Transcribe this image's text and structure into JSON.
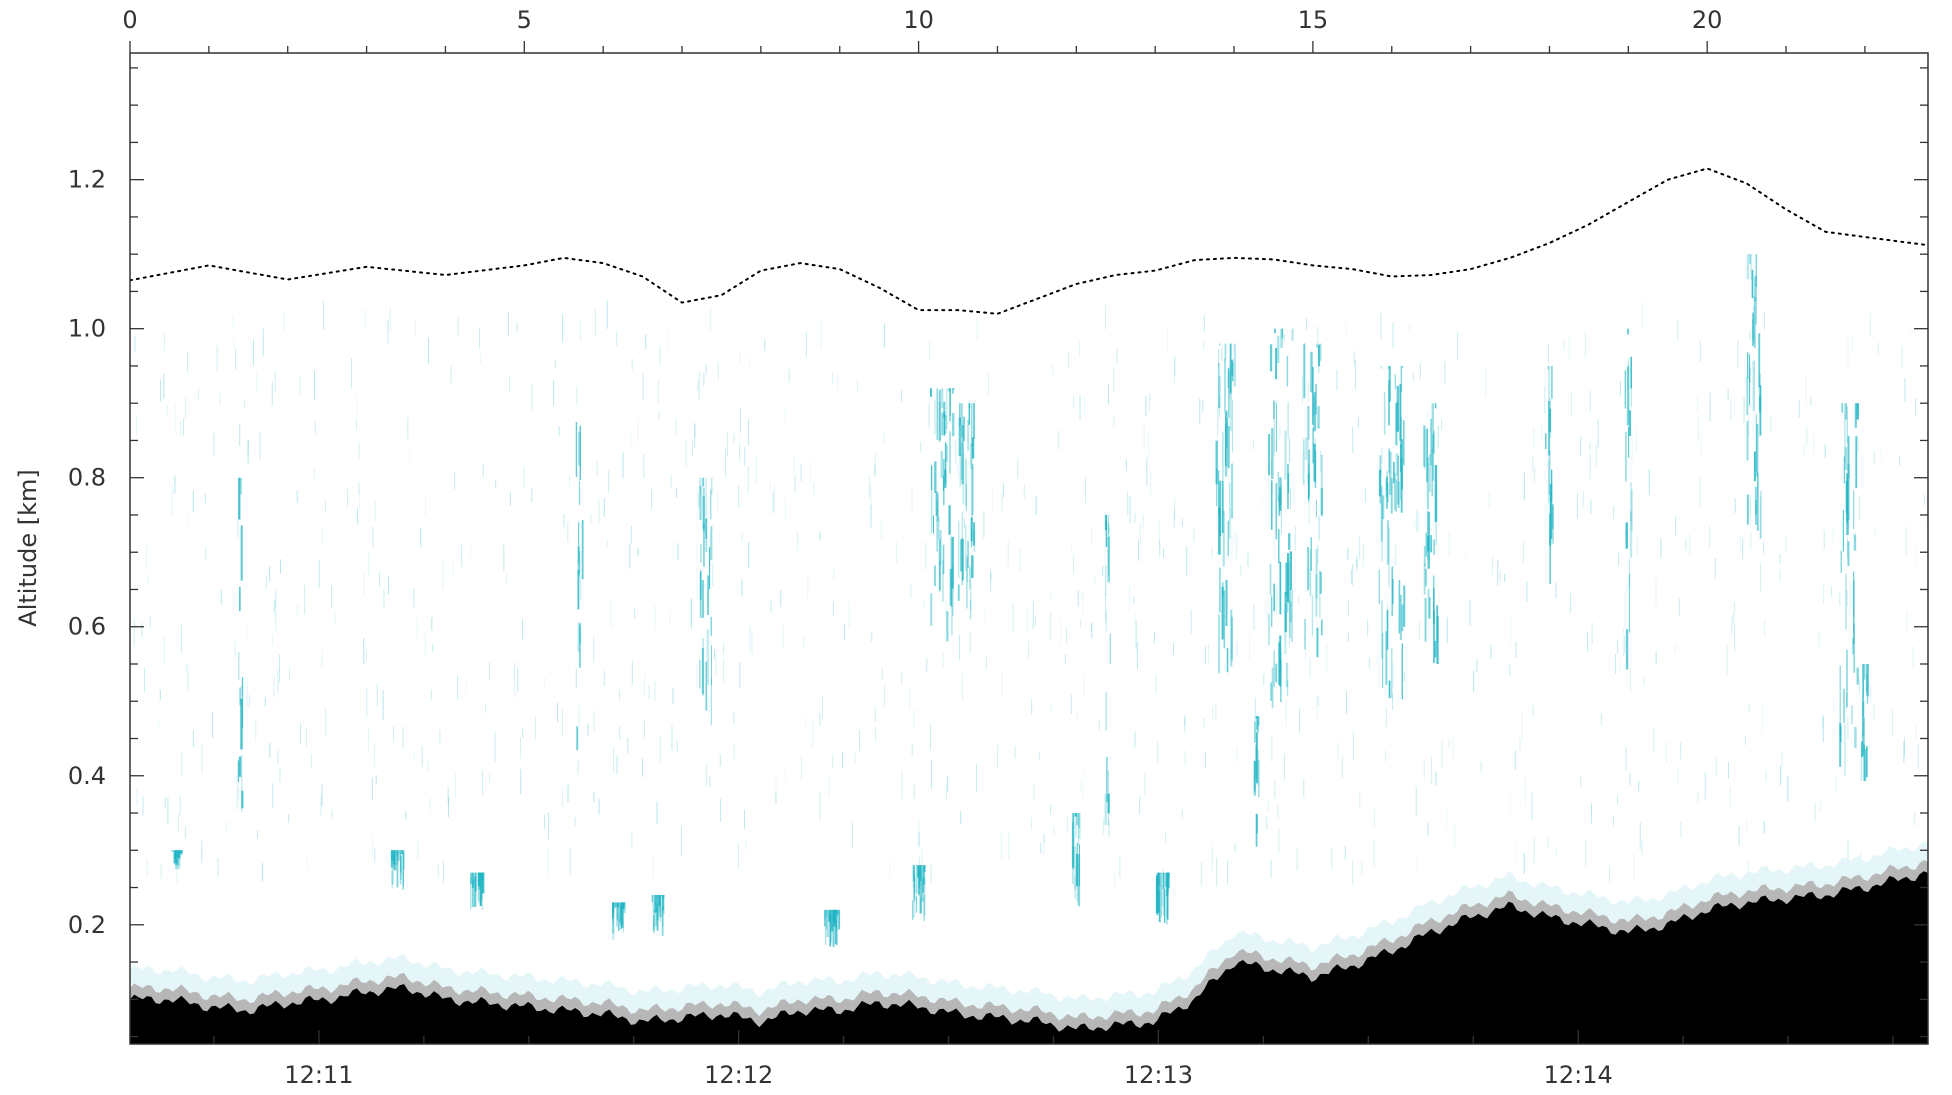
{
  "chart_data": {
    "type": "area",
    "title": "",
    "xlabel_top": "",
    "ylabel": "Altitude [km]",
    "ylim": [
      0.04,
      1.37
    ],
    "top_axis": {
      "range": [
        0,
        22.8
      ],
      "ticks": [
        0,
        5,
        10,
        15,
        20
      ],
      "tick_labels": [
        "0",
        "5",
        "10",
        "15",
        "20"
      ]
    },
    "bottom_axis": {
      "range": [
        "12:10:33",
        "12:14:50"
      ],
      "ticks": [
        "12:11",
        "12:12",
        "12:13",
        "12:14"
      ]
    },
    "y_ticks": [
      0.2,
      0.4,
      0.6,
      0.8,
      1.0,
      1.2
    ],
    "y_tick_labels": [
      "0.2",
      "0.4",
      "0.6",
      "0.8",
      "1.0",
      "1.2"
    ],
    "series": [
      {
        "kind": "line-dotted",
        "color": "#000000",
        "x": [
          0,
          1,
          2,
          3,
          4,
          5,
          5.5,
          6,
          6.5,
          7,
          7.5,
          8,
          8.5,
          9,
          9.5,
          10,
          10.5,
          11,
          11.5,
          12,
          12.5,
          13,
          13.5,
          14,
          14.5,
          15,
          15.5,
          16,
          16.5,
          17,
          17.5,
          18,
          18.5,
          19,
          19.5,
          20,
          20.5,
          21,
          21.5,
          22,
          22.8
        ],
        "values": [
          1.065,
          1.085,
          1.066,
          1.083,
          1.072,
          1.085,
          1.095,
          1.088,
          1.07,
          1.035,
          1.045,
          1.078,
          1.088,
          1.08,
          1.055,
          1.025,
          1.025,
          1.02,
          1.04,
          1.06,
          1.072,
          1.078,
          1.092,
          1.095,
          1.093,
          1.085,
          1.08,
          1.07,
          1.072,
          1.08,
          1.095,
          1.115,
          1.14,
          1.17,
          1.2,
          1.215,
          1.195,
          1.16,
          1.13,
          1.123,
          1.112
        ]
      },
      {
        "kind": "filled-area",
        "color": "#000000",
        "x": [
          0,
          0.5,
          1,
          1.5,
          2,
          2.5,
          3,
          3.5,
          4,
          4.5,
          5,
          5.5,
          6,
          6.5,
          7,
          7.5,
          8,
          8.5,
          9,
          9.5,
          10,
          10.5,
          11,
          11.5,
          12,
          12.5,
          13,
          13.5,
          14,
          14.5,
          15,
          15.5,
          16,
          16.5,
          17,
          17.5,
          18,
          18.5,
          19,
          19.5,
          20,
          20.5,
          21,
          21.5,
          22,
          22.8
        ],
        "values": [
          0.1,
          0.1,
          0.09,
          0.085,
          0.095,
          0.1,
          0.11,
          0.115,
          0.1,
          0.095,
          0.09,
          0.085,
          0.08,
          0.07,
          0.075,
          0.08,
          0.07,
          0.085,
          0.085,
          0.095,
          0.09,
          0.08,
          0.075,
          0.07,
          0.06,
          0.065,
          0.07,
          0.1,
          0.15,
          0.14,
          0.13,
          0.145,
          0.165,
          0.19,
          0.21,
          0.225,
          0.21,
          0.2,
          0.19,
          0.2,
          0.22,
          0.23,
          0.235,
          0.24,
          0.25,
          0.27
        ]
      }
    ],
    "heatmap_color": "#1fb5c4",
    "echo_columns": [
      {
        "x": 0.6,
        "y0": 0.27,
        "y1": 0.3,
        "w": 0.08
      },
      {
        "x": 3.4,
        "y0": 0.24,
        "y1": 0.3,
        "w": 0.1
      },
      {
        "x": 4.4,
        "y0": 0.22,
        "y1": 0.27,
        "w": 0.1
      },
      {
        "x": 6.2,
        "y0": 0.18,
        "y1": 0.23,
        "w": 0.1
      },
      {
        "x": 6.7,
        "y0": 0.18,
        "y1": 0.24,
        "w": 0.1
      },
      {
        "x": 8.9,
        "y0": 0.17,
        "y1": 0.22,
        "w": 0.12
      },
      {
        "x": 10.0,
        "y0": 0.2,
        "y1": 0.28,
        "w": 0.1
      },
      {
        "x": 12.0,
        "y0": 0.22,
        "y1": 0.35,
        "w": 0.06
      },
      {
        "x": 13.1,
        "y0": 0.2,
        "y1": 0.27,
        "w": 0.1
      },
      {
        "x": 14.3,
        "y0": 0.28,
        "y1": 0.48,
        "w": 0.05
      },
      {
        "x": 10.3,
        "y0": 0.58,
        "y1": 0.92,
        "w": 0.18
      },
      {
        "x": 10.6,
        "y0": 0.6,
        "y1": 0.9,
        "w": 0.14
      },
      {
        "x": 13.9,
        "y0": 0.5,
        "y1": 0.98,
        "w": 0.15
      },
      {
        "x": 14.6,
        "y0": 0.48,
        "y1": 1.0,
        "w": 0.2
      },
      {
        "x": 15.0,
        "y0": 0.55,
        "y1": 0.98,
        "w": 0.15
      },
      {
        "x": 16.0,
        "y0": 0.5,
        "y1": 0.95,
        "w": 0.2
      },
      {
        "x": 16.5,
        "y0": 0.55,
        "y1": 0.9,
        "w": 0.12
      },
      {
        "x": 7.3,
        "y0": 0.45,
        "y1": 0.8,
        "w": 0.1
      },
      {
        "x": 21.8,
        "y0": 0.38,
        "y1": 0.9,
        "w": 0.15
      },
      {
        "x": 22.0,
        "y0": 0.38,
        "y1": 0.55,
        "w": 0.06
      },
      {
        "x": 20.6,
        "y0": 0.7,
        "y1": 1.1,
        "w": 0.12
      },
      {
        "x": 1.4,
        "y0": 0.35,
        "y1": 0.8,
        "w": 0.04
      },
      {
        "x": 5.7,
        "y0": 0.4,
        "y1": 0.9,
        "w": 0.05
      },
      {
        "x": 19.0,
        "y0": 0.5,
        "y1": 1.0,
        "w": 0.06
      },
      {
        "x": 18.0,
        "y0": 0.6,
        "y1": 0.95,
        "w": 0.06
      },
      {
        "x": 12.4,
        "y0": 0.3,
        "y1": 0.75,
        "w": 0.04
      }
    ],
    "legend": "none",
    "grid": false
  }
}
